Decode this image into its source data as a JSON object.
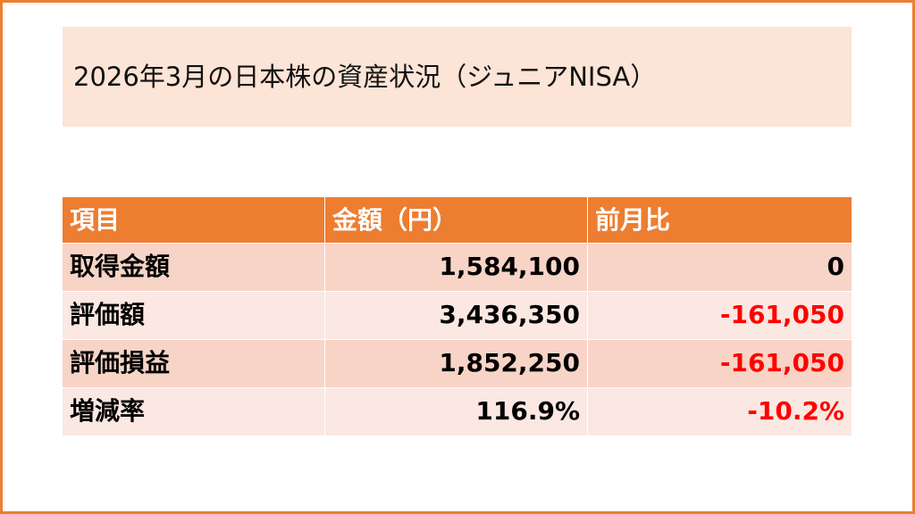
{
  "title": "2026年3月の日本株の資産状況（ジュニアNISA）",
  "table": {
    "header": [
      "項目",
      "金額（円）",
      "前月比"
    ],
    "rows": [
      [
        "取得金額",
        "1,584,100",
        "0"
      ],
      [
        "評価額",
        "3,436,350",
        "-161,050"
      ],
      [
        "評価損益",
        "1,852,250",
        "-161,050"
      ],
      [
        "増減率",
        "116.9%",
        "-10.2%"
      ]
    ]
  }
}
